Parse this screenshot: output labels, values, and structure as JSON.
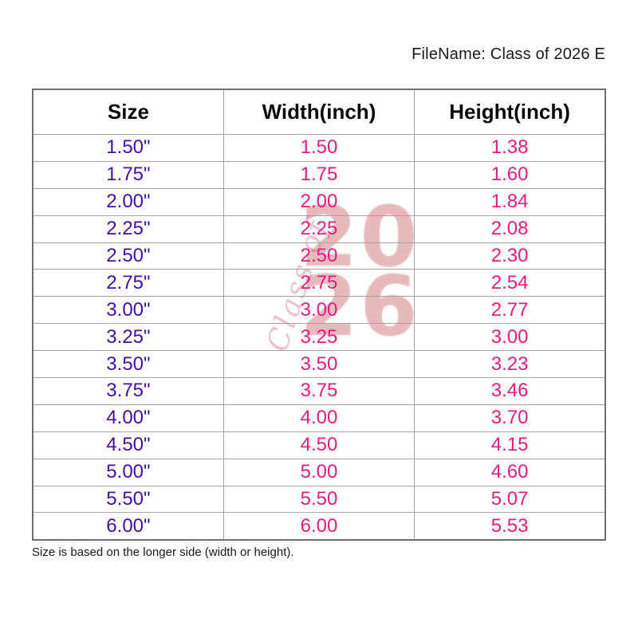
{
  "header": {
    "filename_label": "FileName: Class of 2026 E"
  },
  "watermark": {
    "script_text": "Class of",
    "digits_line1": "20",
    "digits_line2": "26"
  },
  "table": {
    "columns": [
      "Size",
      "Width(inch)",
      "Height(inch)"
    ],
    "rows": [
      {
        "size": "1.50\"",
        "width": "1.50",
        "height": "1.38"
      },
      {
        "size": "1.75\"",
        "width": "1.75",
        "height": "1.60"
      },
      {
        "size": "2.00\"",
        "width": "2.00",
        "height": "1.84"
      },
      {
        "size": "2.25\"",
        "width": "2.25",
        "height": "2.08"
      },
      {
        "size": "2.50\"",
        "width": "2.50",
        "height": "2.30"
      },
      {
        "size": "2.75\"",
        "width": "2.75",
        "height": "2.54"
      },
      {
        "size": "3.00\"",
        "width": "3.00",
        "height": "2.77"
      },
      {
        "size": "3.25\"",
        "width": "3.25",
        "height": "3.00"
      },
      {
        "size": "3.50\"",
        "width": "3.50",
        "height": "3.23"
      },
      {
        "size": "3.75\"",
        "width": "3.75",
        "height": "3.46"
      },
      {
        "size": "4.00\"",
        "width": "4.00",
        "height": "3.70"
      },
      {
        "size": "4.50\"",
        "width": "4.50",
        "height": "4.15"
      },
      {
        "size": "5.00\"",
        "width": "5.00",
        "height": "4.60"
      },
      {
        "size": "5.50\"",
        "width": "5.50",
        "height": "5.07"
      },
      {
        "size": "6.00\"",
        "width": "6.00",
        "height": "5.53"
      }
    ]
  },
  "footer": {
    "note": "Size is based on the longer side (width or height)."
  },
  "colors": {
    "size_text": "#430FA0",
    "value_text": "#E01F82",
    "header_text": "#0A0A0A",
    "outer_border": "#6E6E6E",
    "inner_border": "#A3A3A3",
    "watermark_pink": "#CF7086",
    "watermark_red": "#C86066"
  },
  "chart_data": {
    "type": "table",
    "title": "FileName: Class of 2026 E",
    "columns": [
      "Size",
      "Width(inch)",
      "Height(inch)"
    ],
    "rows": [
      [
        "1.50\"",
        1.5,
        1.38
      ],
      [
        "1.75\"",
        1.75,
        1.6
      ],
      [
        "2.00\"",
        2.0,
        1.84
      ],
      [
        "2.25\"",
        2.25,
        2.08
      ],
      [
        "2.50\"",
        2.5,
        2.3
      ],
      [
        "2.75\"",
        2.75,
        2.54
      ],
      [
        "3.00\"",
        3.0,
        2.77
      ],
      [
        "3.25\"",
        3.25,
        3.0
      ],
      [
        "3.50\"",
        3.5,
        3.23
      ],
      [
        "3.75\"",
        3.75,
        3.46
      ],
      [
        "4.00\"",
        4.0,
        3.7
      ],
      [
        "4.50\"",
        4.5,
        4.15
      ],
      [
        "5.00\"",
        5.0,
        4.6
      ],
      [
        "5.50\"",
        5.5,
        5.07
      ],
      [
        "6.00\"",
        6.0,
        5.53
      ]
    ],
    "annotations": [
      "Size is based on the longer side (width or height)."
    ]
  }
}
